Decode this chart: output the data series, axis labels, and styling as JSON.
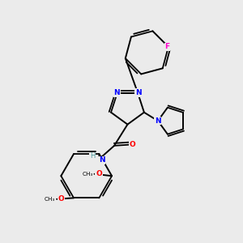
{
  "background_color": "#ebebeb",
  "atom_colors": {
    "N": "#0000ff",
    "O": "#ff0000",
    "F": "#ff00cc",
    "C": "#000000",
    "H": "#4a9a9a"
  },
  "bond_color": "#000000",
  "figsize": [
    3.0,
    3.0
  ],
  "dpi": 100
}
